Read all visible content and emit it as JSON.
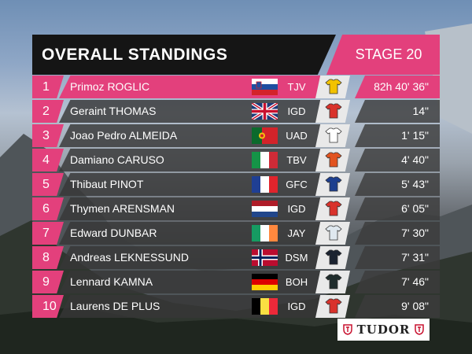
{
  "header": {
    "title": "OVERALL STANDINGS",
    "stage": "STAGE 20"
  },
  "standings": [
    {
      "rank": "1",
      "rider": "Primoz ROGLIC",
      "team": "TJV",
      "time": "82h 40' 36\"",
      "flag": "slovenia",
      "jersey_color": "#f2c200"
    },
    {
      "rank": "2",
      "rider": "Geraint THOMAS",
      "team": "IGD",
      "time": "14\"",
      "flag": "great-britain",
      "jersey_color": "#d9322b"
    },
    {
      "rank": "3",
      "rider": "Joao Pedro ALMEIDA",
      "team": "UAD",
      "time": "1' 15\"",
      "flag": "portugal",
      "jersey_color": "#ffffff"
    },
    {
      "rank": "4",
      "rider": "Damiano CARUSO",
      "team": "TBV",
      "time": "4' 40\"",
      "flag": "italy",
      "jersey_color": "#e2531f"
    },
    {
      "rank": "5",
      "rider": "Thibaut PINOT",
      "team": "GFC",
      "time": "5' 43\"",
      "flag": "france",
      "jersey_color": "#1d3f8f"
    },
    {
      "rank": "6",
      "rider": "Thymen ARENSMAN",
      "team": "IGD",
      "time": "6' 05\"",
      "flag": "netherlands",
      "jersey_color": "#d9322b"
    },
    {
      "rank": "7",
      "rider": "Edward DUNBAR",
      "team": "JAY",
      "time": "7' 30\"",
      "flag": "ireland",
      "jersey_color": "#dfe8ef"
    },
    {
      "rank": "8",
      "rider": "Andreas LEKNESSUND",
      "team": "DSM",
      "time": "7' 31\"",
      "flag": "norway",
      "jersey_color": "#1b2330"
    },
    {
      "rank": "9",
      "rider": "Lennard KAMNA",
      "team": "BOH",
      "time": "7' 46\"",
      "flag": "germany",
      "jersey_color": "#1f2c2c"
    },
    {
      "rank": "10",
      "rider": "Laurens DE PLUS",
      "team": "IGD",
      "time": "9' 08\"",
      "flag": "belgium",
      "jersey_color": "#d9322b"
    }
  ],
  "sponsor": {
    "name": "TUDOR",
    "icon": "shield-icon"
  },
  "colors": {
    "accent": "#e3407c",
    "header_bg": "#151515",
    "row_bg": "#373737"
  }
}
